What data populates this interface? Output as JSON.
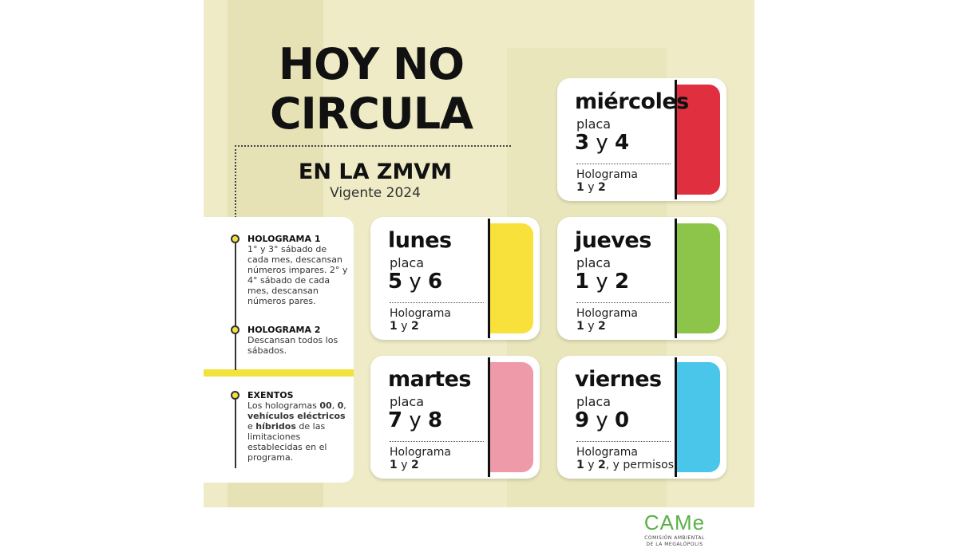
{
  "title_line1": "HOY NO",
  "title_line2": "CIRCULA",
  "subtitle": "EN LA ZMVM",
  "validity": "Vigente 2024",
  "notes": [
    {
      "heading": "HOLOGRAMA 1",
      "text": "1° y 3° sábado de cada mes, descansan números impares. 2° y 4° sábado de cada mes, descansan números pares."
    },
    {
      "heading": "HOLOGRAMA 2",
      "text": "Descansan todos los sábados."
    },
    {
      "heading": "EXENTOS",
      "t1": "Los hologramas ",
      "b1": "00",
      "t2": ", ",
      "b2": "0",
      "t3": ", ",
      "b3": "vehículos  eléctricos",
      "t4": " e ",
      "b4": "híbridos",
      "t5": " de las limitaciones establecidas en el programa."
    }
  ],
  "cards": [
    {
      "day": "miércoles",
      "placa_label": "placa",
      "a": "3",
      "sep": "y",
      "b": "4",
      "holo_label": "Holograma",
      "h1": "1",
      "hsep": " y ",
      "h2": "2",
      "extra": "",
      "color": "#e0303f"
    },
    {
      "day": "lunes",
      "placa_label": "placa",
      "a": "5",
      "sep": "y",
      "b": "6",
      "holo_label": "Holograma",
      "h1": "1",
      "hsep": " y ",
      "h2": "2",
      "extra": "",
      "color": "#f8e13a"
    },
    {
      "day": "jueves",
      "placa_label": "placa",
      "a": "1",
      "sep": "y",
      "b": "2",
      "holo_label": "Holograma",
      "h1": "1",
      "hsep": " y ",
      "h2": "2",
      "extra": "",
      "color": "#8dc54a"
    },
    {
      "day": "martes",
      "placa_label": "placa",
      "a": "7",
      "sep": "y",
      "b": "8",
      "holo_label": "Holograma",
      "h1": "1",
      "hsep": " y ",
      "h2": "2",
      "extra": "",
      "color": "#ee9aa9"
    },
    {
      "day": "viernes",
      "placa_label": "placa",
      "a": "9",
      "sep": "y",
      "b": "0",
      "holo_label": "Holograma",
      "h1": "1",
      "hsep": " y ",
      "h2": "2",
      "extra": ", y permisos",
      "color": "#4ac6ea"
    }
  ],
  "logo": {
    "mark": "CAMe",
    "line1": "COMISIÓN AMBIENTAL",
    "line2": "DE LA MEGALÓPOLIS"
  }
}
